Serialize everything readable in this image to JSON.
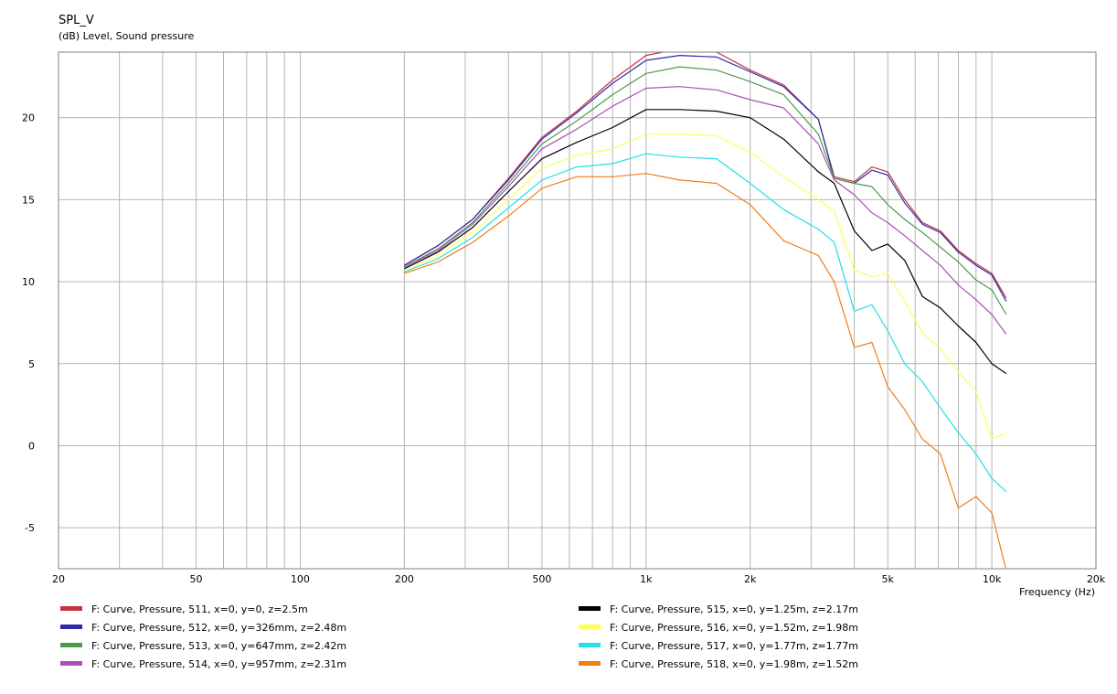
{
  "chart_data": {
    "type": "line",
    "title": "SPL_V",
    "subtitle": "(dB)  Level, Sound pressure",
    "xlabel": "Frequency  (Hz)",
    "x_scale": "log",
    "xlim": [
      20,
      20000
    ],
    "ylim": [
      -7.5,
      24
    ],
    "x_ticks": [
      {
        "value": 20,
        "label": "20"
      },
      {
        "value": 50,
        "label": "50"
      },
      {
        "value": 100,
        "label": "100"
      },
      {
        "value": 200,
        "label": "200"
      },
      {
        "value": 500,
        "label": "500"
      },
      {
        "value": 1000,
        "label": "1k"
      },
      {
        "value": 2000,
        "label": "2k"
      },
      {
        "value": 5000,
        "label": "5k"
      },
      {
        "value": 10000,
        "label": "10k"
      },
      {
        "value": 20000,
        "label": "20k"
      }
    ],
    "y_ticks": [
      {
        "value": 20,
        "label": "20"
      },
      {
        "value": 15,
        "label": "15"
      },
      {
        "value": 10,
        "label": "10"
      },
      {
        "value": 5,
        "label": "5"
      },
      {
        "value": 0,
        "label": "0"
      },
      {
        "value": -5,
        "label": "-5"
      }
    ],
    "grid": true,
    "legend_position": "bottom",
    "x": [
      200,
      250,
      315,
      400,
      500,
      630,
      800,
      1000,
      1250,
      1600,
      2000,
      2500,
      3150,
      3500,
      4000,
      4500,
      5000,
      5600,
      6300,
      7100,
      8000,
      9000,
      10000,
      11000
    ],
    "series": [
      {
        "name": "F: Curve, Pressure, 511, x=0, y=0, z=2.5m",
        "color": "#c8323c",
        "values": [
          11.0,
          12.2,
          13.8,
          16.3,
          18.8,
          20.4,
          22.3,
          23.8,
          24.2,
          24.0,
          22.9,
          22.0,
          19.9,
          16.4,
          16.1,
          17.0,
          16.7,
          15.0,
          13.6,
          13.1,
          11.9,
          11.1,
          10.5,
          9.0
        ]
      },
      {
        "name": "F: Curve, Pressure, 512, x=0, y=326mm, z=2.48m",
        "color": "#2b2bb2",
        "values": [
          11.0,
          12.2,
          13.8,
          16.2,
          18.7,
          20.3,
          22.1,
          23.5,
          23.8,
          23.7,
          22.8,
          21.9,
          19.9,
          16.3,
          16.0,
          16.8,
          16.5,
          14.8,
          13.5,
          13.0,
          11.8,
          11.0,
          10.4,
          8.8
        ]
      },
      {
        "name": "F: Curve, Pressure, 513, x=0, y=647mm, z=2.42m",
        "color": "#4c9a4c",
        "values": [
          10.9,
          12.0,
          13.6,
          16.0,
          18.4,
          19.8,
          21.4,
          22.7,
          23.1,
          22.9,
          22.2,
          21.4,
          19.0,
          16.3,
          16.0,
          15.8,
          14.7,
          13.8,
          13.0,
          12.1,
          11.2,
          10.1,
          9.5,
          8.0
        ]
      },
      {
        "name": "F: Curve, Pressure, 514, x=0, y=957mm, z=2.31m",
        "color": "#a850b4",
        "values": [
          10.9,
          11.9,
          13.5,
          15.8,
          18.1,
          19.3,
          20.7,
          21.8,
          21.9,
          21.7,
          21.1,
          20.6,
          18.4,
          16.2,
          15.3,
          14.2,
          13.6,
          12.8,
          11.9,
          11.0,
          9.8,
          8.9,
          8.0,
          6.8
        ]
      },
      {
        "name": "F: Curve, Pressure, 515, x=0, y=1.25m, z=2.17m",
        "color": "#000000",
        "values": [
          10.8,
          11.8,
          13.3,
          15.5,
          17.5,
          18.5,
          19.4,
          20.5,
          20.5,
          20.4,
          20.0,
          18.7,
          16.7,
          16.0,
          13.1,
          11.9,
          12.3,
          11.3,
          9.1,
          8.4,
          7.3,
          6.3,
          5.0,
          4.4
        ]
      },
      {
        "name": "F: Curve, Pressure, 516, x=0, y=1.52m, z=1.98m",
        "color": "#ffff55",
        "values": [
          10.7,
          11.6,
          13.0,
          15.0,
          16.9,
          17.7,
          18.1,
          19.0,
          19.0,
          18.9,
          17.9,
          16.4,
          15.0,
          14.3,
          10.7,
          10.3,
          10.5,
          8.8,
          6.9,
          5.9,
          4.5,
          3.3,
          0.4,
          0.8
        ]
      },
      {
        "name": "F: Curve, Pressure, 517, x=0, y=1.77m, z=1.77m",
        "color": "#22e0e8",
        "values": [
          10.6,
          11.4,
          12.7,
          14.5,
          16.2,
          17.0,
          17.2,
          17.8,
          17.6,
          17.5,
          16.0,
          14.4,
          13.2,
          12.4,
          8.2,
          8.6,
          7.0,
          5.0,
          3.9,
          2.3,
          0.8,
          -0.5,
          -2.0,
          -2.8
        ]
      },
      {
        "name": "F: Curve, Pressure, 518, x=0, y=1.98m, z=1.52m",
        "color": "#f07d18",
        "values": [
          10.5,
          11.2,
          12.4,
          14.0,
          15.7,
          16.4,
          16.4,
          16.6,
          16.2,
          16.0,
          14.7,
          12.5,
          11.6,
          10.0,
          6.0,
          6.3,
          3.6,
          2.2,
          0.4,
          -0.5,
          -3.8,
          -3.1,
          -4.1,
          -7.6
        ]
      }
    ]
  }
}
